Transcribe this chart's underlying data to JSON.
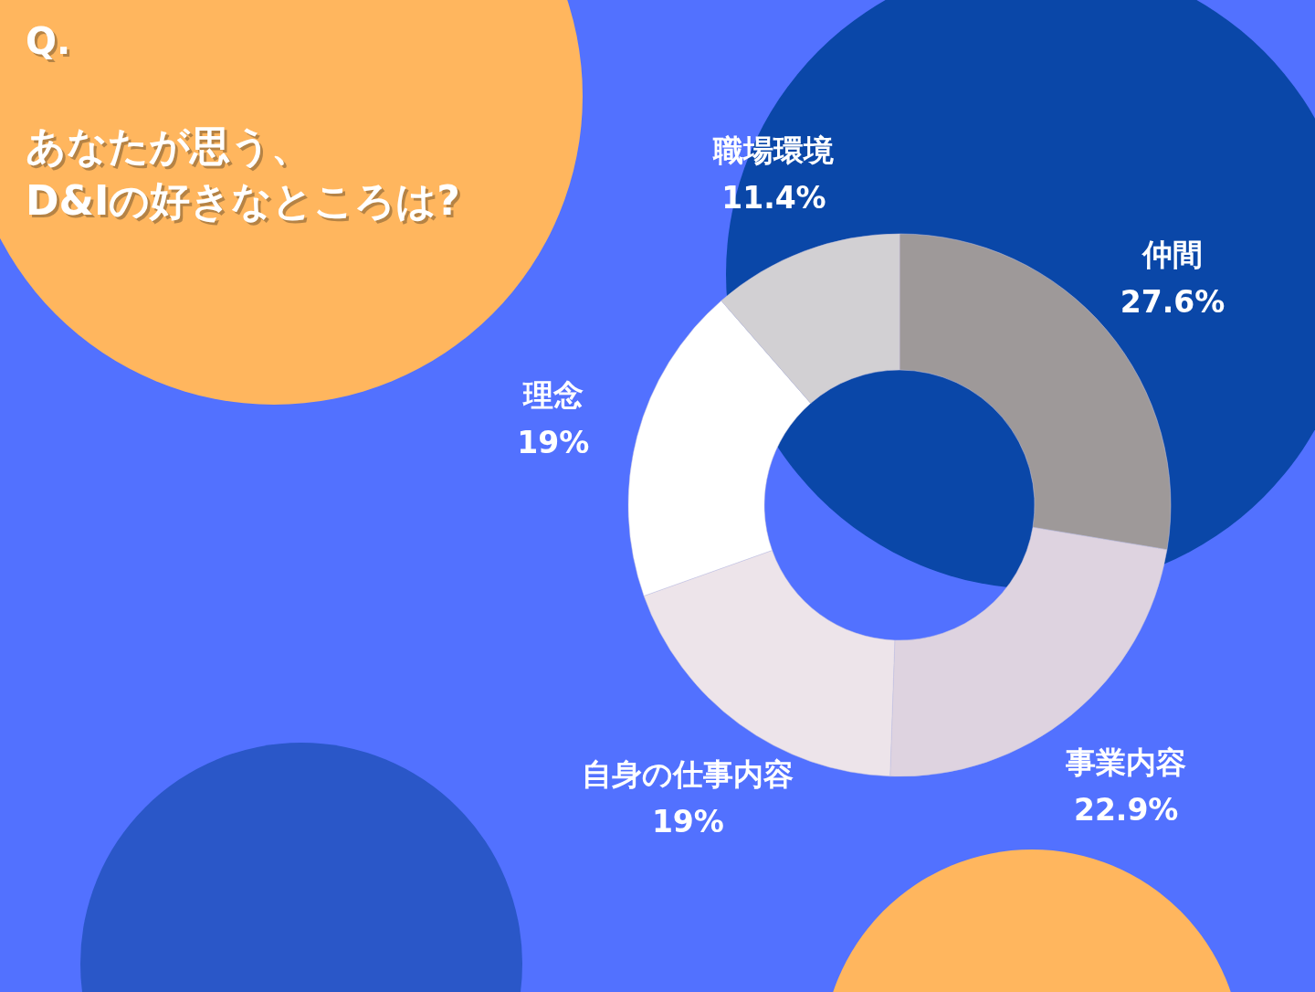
{
  "chart_data": {
    "type": "donut",
    "title": "Q.",
    "subtitle": "あなたが思う、D&Iの好きなところは?",
    "categories": [
      "仲間",
      "事業内容",
      "自身の仕事内容",
      "理念",
      "職場環境"
    ],
    "values": [
      27.6,
      22.9,
      19,
      19,
      11.4
    ],
    "colors": [
      "#9e9999",
      "#ded3e0",
      "#ede4ea",
      "#ffffff",
      "#d2d0d3"
    ],
    "value_labels": [
      "27.6%",
      "22.9%",
      "19%",
      "19%",
      "11.4%"
    ]
  }
}
